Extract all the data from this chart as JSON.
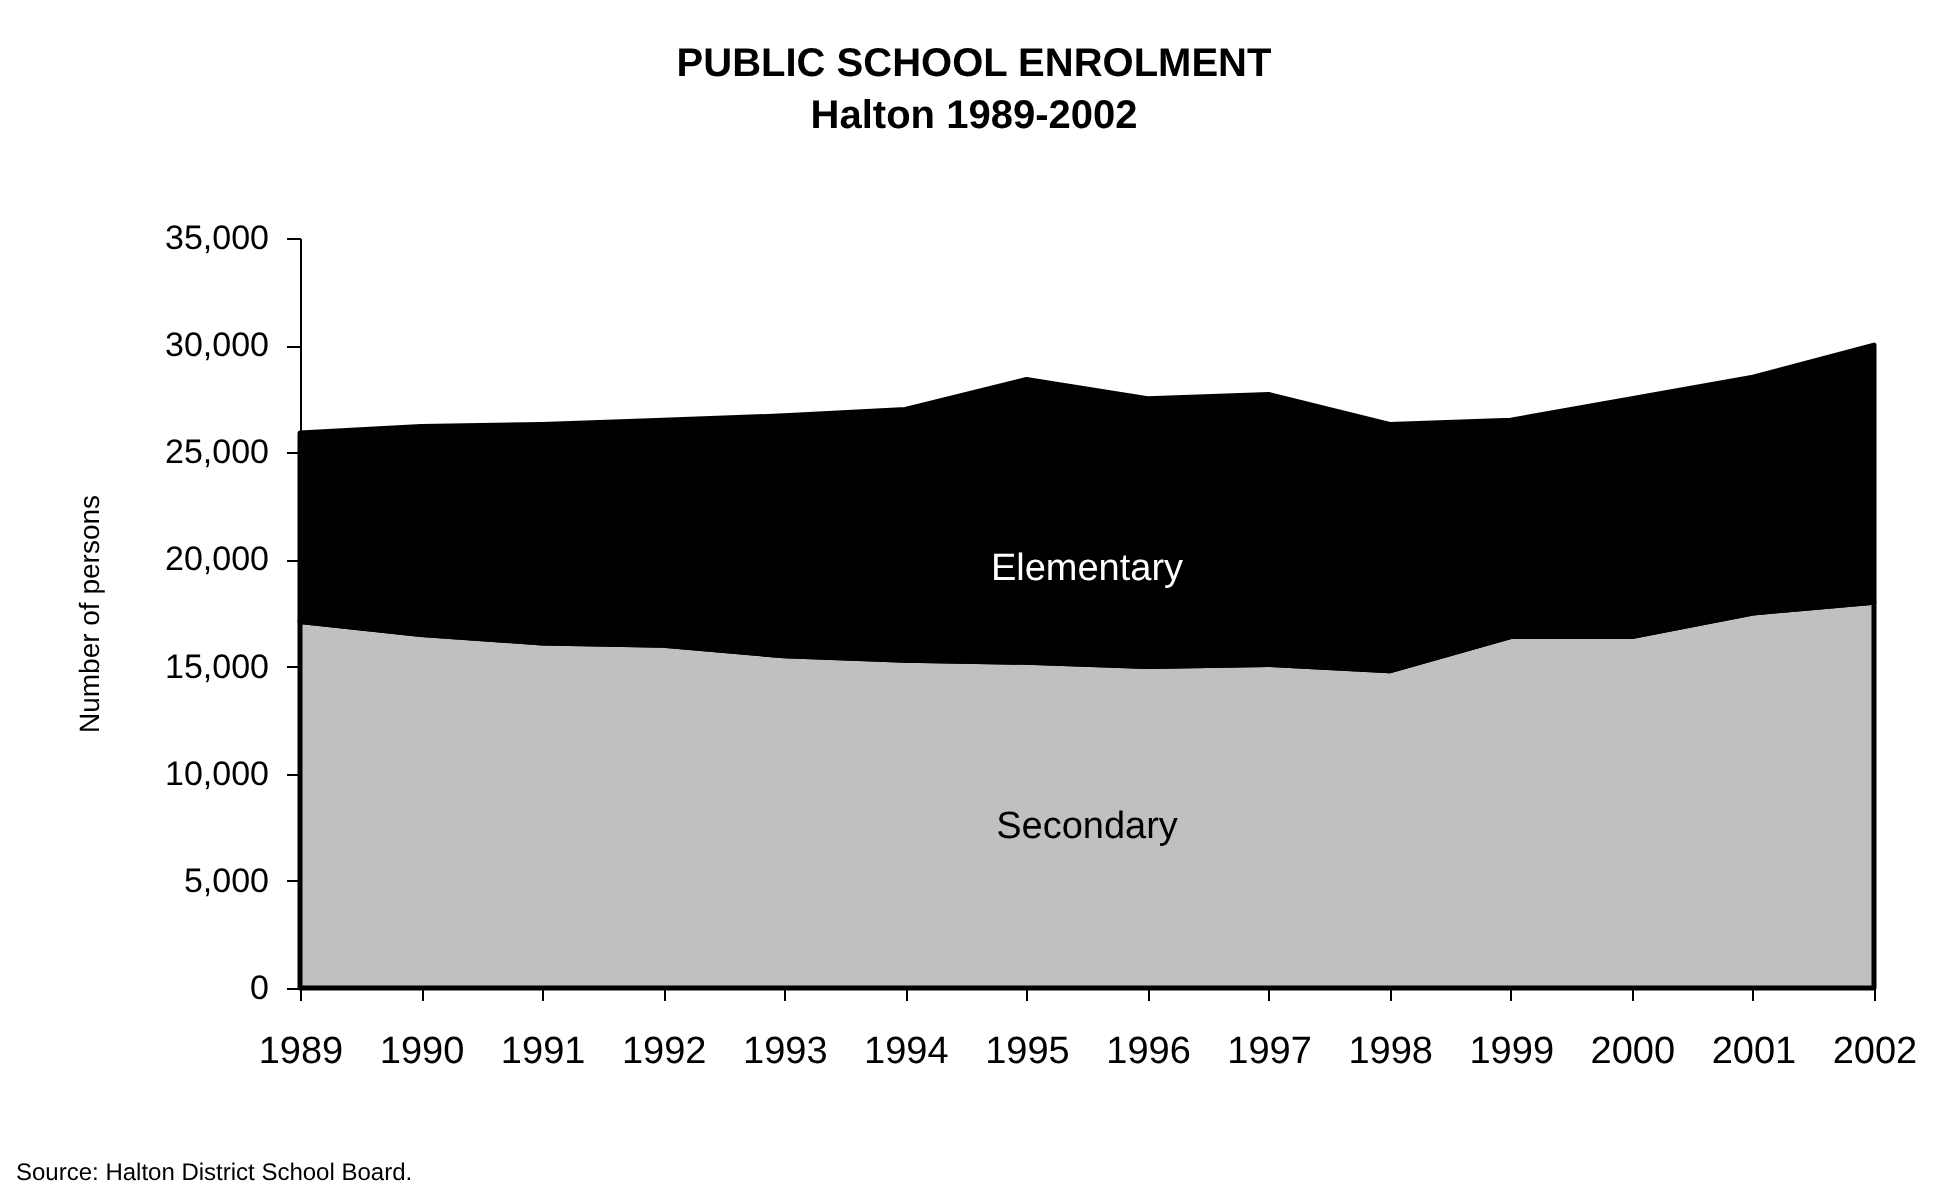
{
  "chart_data": {
    "type": "area",
    "title": "PUBLIC SCHOOL ENROLMENT",
    "subtitle": "Halton 1989-2002",
    "ylabel": "Number of persons",
    "categories": [
      "1989",
      "1990",
      "1991",
      "1992",
      "1993",
      "1994",
      "1995",
      "1996",
      "1997",
      "1998",
      "1999",
      "2000",
      "2001",
      "2002"
    ],
    "stacked": true,
    "series": [
      {
        "name": "Secondary",
        "color": "#c0c0c0",
        "values": [
          17100,
          16500,
          16100,
          16000,
          15500,
          15300,
          15200,
          15000,
          15100,
          14800,
          16400,
          16400,
          17500,
          18000
        ]
      },
      {
        "name": "Elementary",
        "color": "#000000",
        "values": [
          8800,
          9700,
          10200,
          10500,
          11200,
          11700,
          13200,
          12500,
          12600,
          11500,
          10100,
          11100,
          11000,
          12000
        ]
      }
    ],
    "ylim": [
      0,
      35000
    ],
    "yticks": [
      0,
      {
        "value": 5000,
        "label": "5,000"
      },
      {
        "value": 10000,
        "label": "10,000"
      },
      {
        "value": 15000,
        "label": "15,000"
      },
      {
        "value": 20000,
        "label": "20,000"
      },
      {
        "value": 25000,
        "label": "25,000"
      },
      {
        "value": 30000,
        "label": "30,000"
      },
      {
        "value": 35000,
        "label": "35,000"
      }
    ],
    "legend": false,
    "annotations": [
      "Source: Halton District School Board."
    ]
  }
}
